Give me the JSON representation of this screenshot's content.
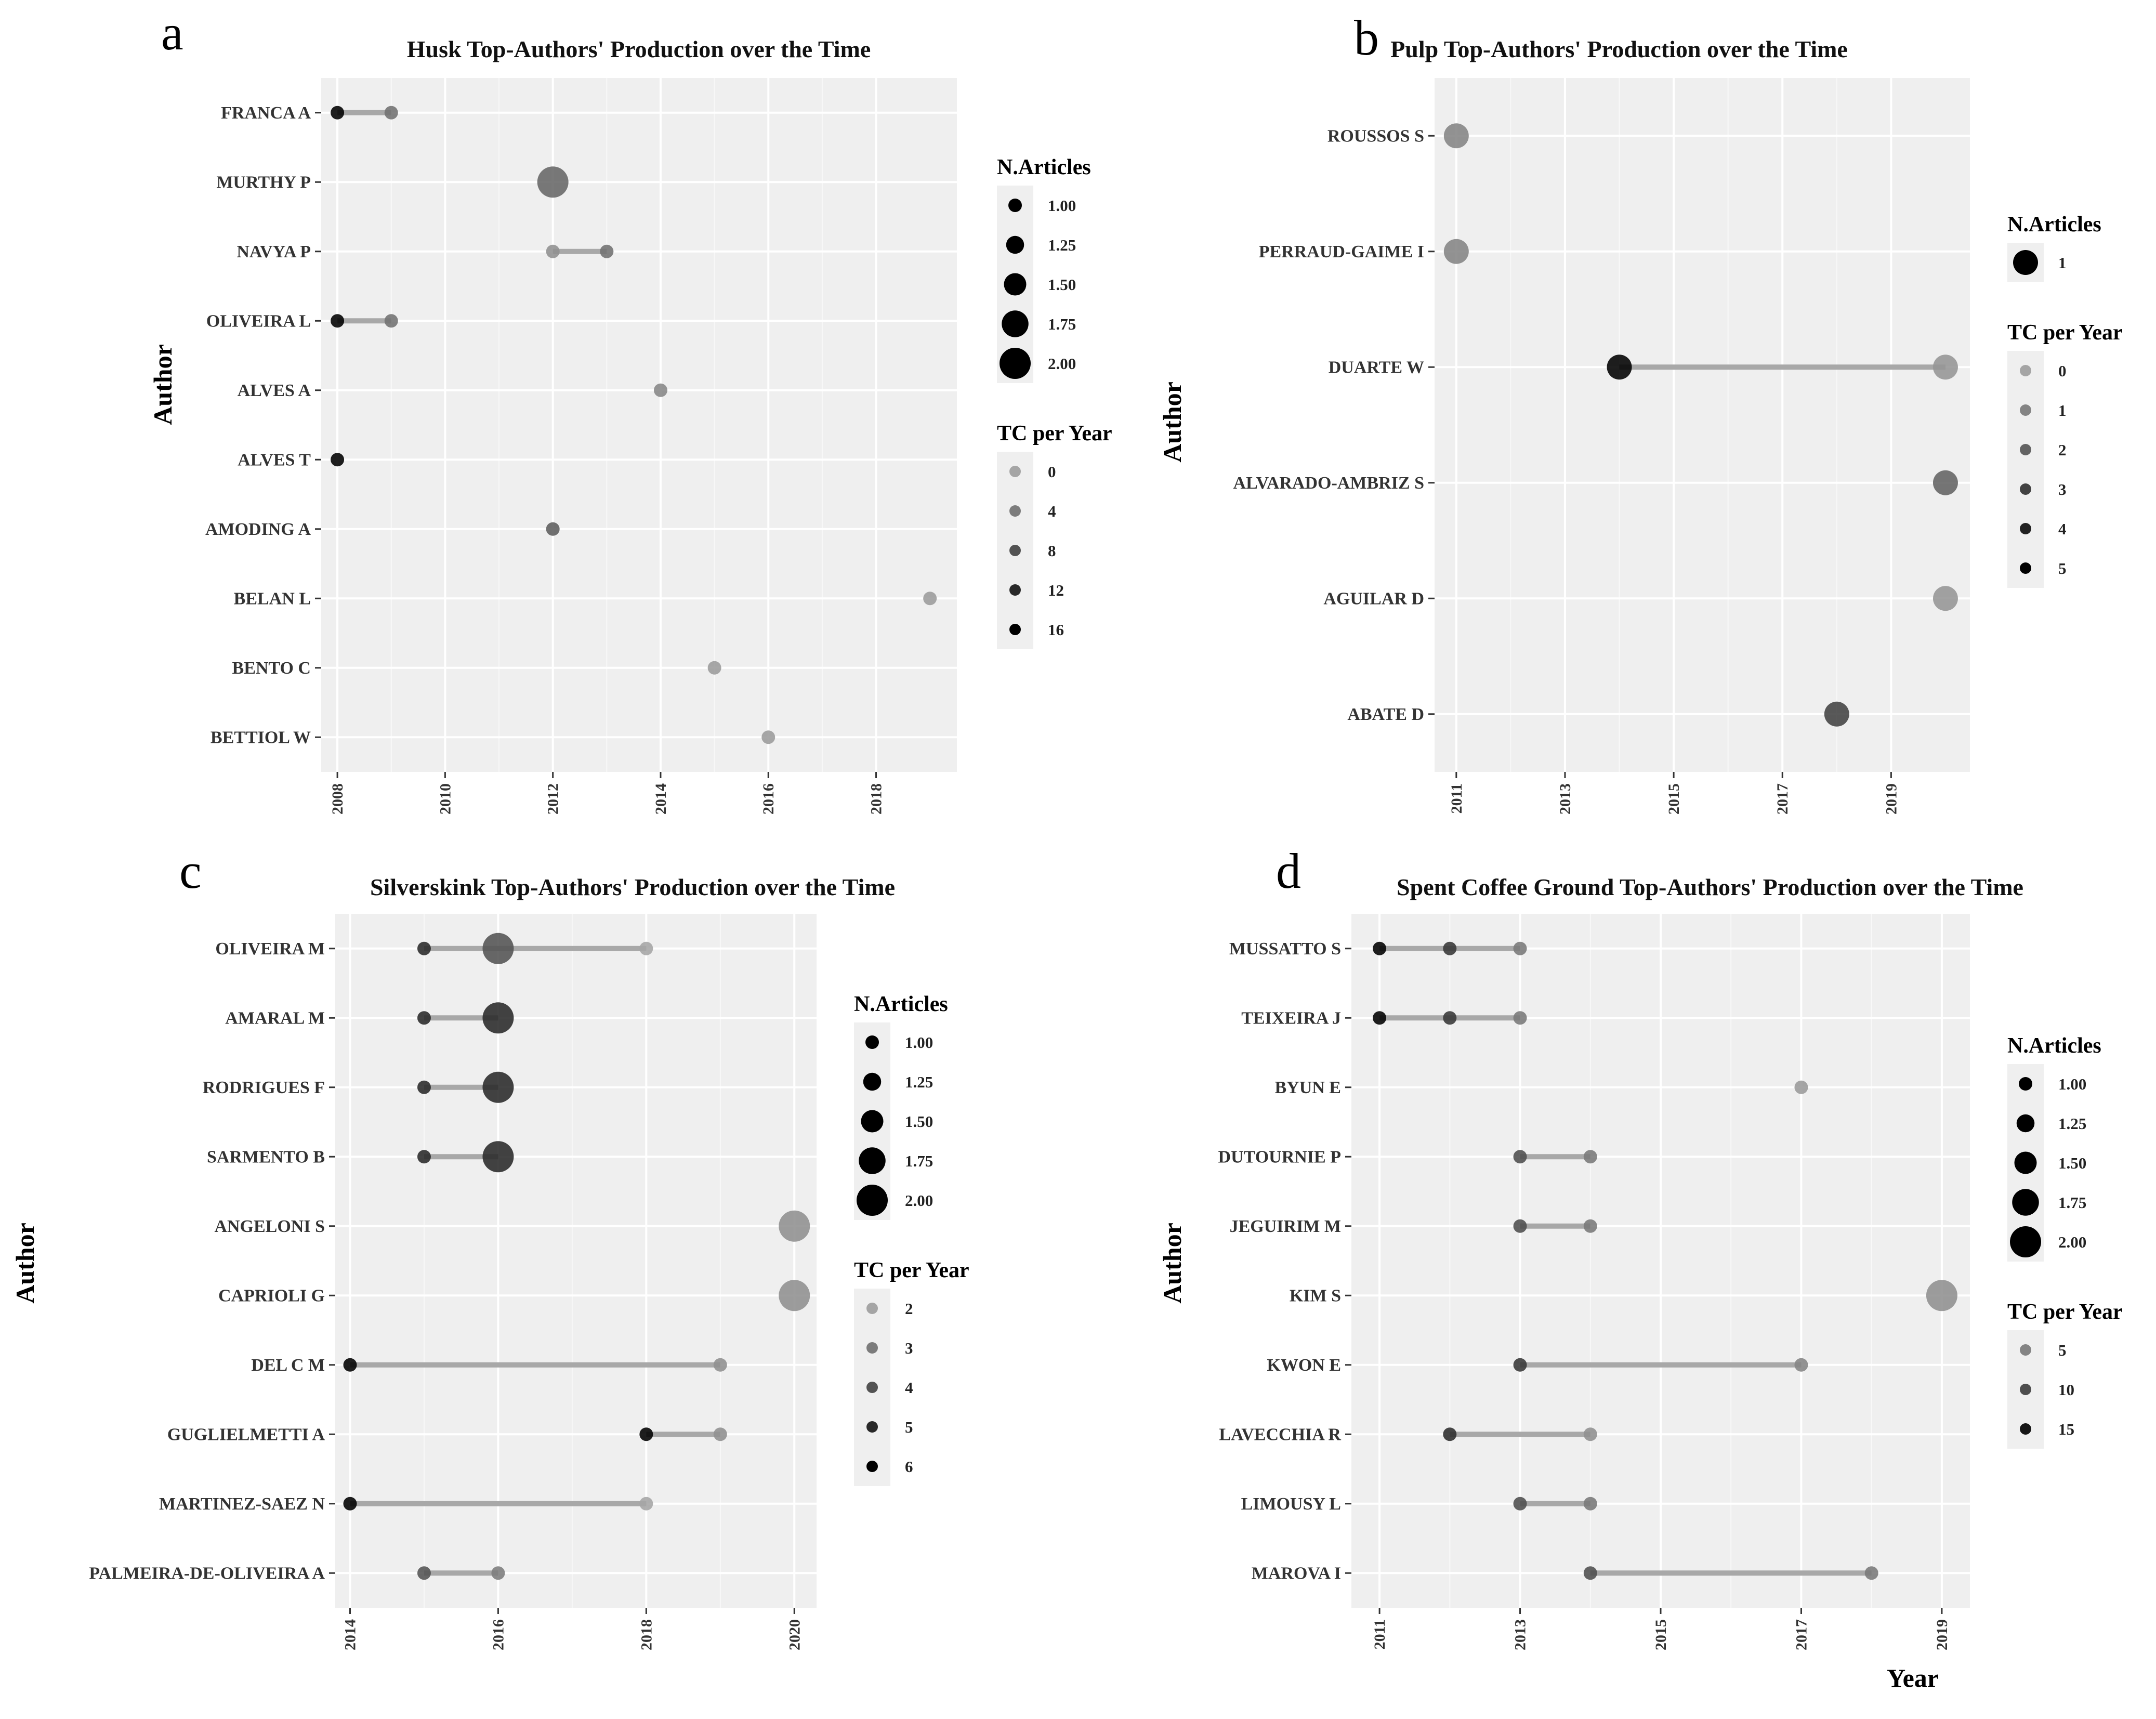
{
  "chart_data": [
    {
      "type": "scatter",
      "panel_label": "a",
      "title": "Husk Top-Authors' Production over the Time",
      "ylabel": "Author",
      "xlabel": "",
      "xlim": [
        2007.7,
        2019.5
      ],
      "xticks": [
        2008,
        2010,
        2012,
        2014,
        2016,
        2018
      ],
      "xtick_labels": [
        "2008",
        "2010",
        "2012",
        "2014",
        "2016",
        "2018"
      ],
      "authors": [
        "FRANCA A",
        "MURTHY P",
        "NAVYA P",
        "OLIVEIRA L",
        "ALVES A",
        "ALVES T",
        "AMODING A",
        "BELAN L",
        "BENTO C",
        "BETTIOL W"
      ],
      "lines": [
        {
          "author": "FRANCA A",
          "from": 2008,
          "to": 2009
        },
        {
          "author": "NAVYA P",
          "from": 2012,
          "to": 2013
        },
        {
          "author": "OLIVEIRA L",
          "from": 2008,
          "to": 2009
        }
      ],
      "points": [
        {
          "author": "FRANCA A",
          "year": 2008,
          "n_articles": 1,
          "tc_per_year": 16
        },
        {
          "author": "FRANCA A",
          "year": 2009,
          "n_articles": 1,
          "tc_per_year": 5
        },
        {
          "author": "MURTHY P",
          "year": 2012,
          "n_articles": 2,
          "tc_per_year": 6
        },
        {
          "author": "NAVYA P",
          "year": 2012,
          "n_articles": 1,
          "tc_per_year": 2
        },
        {
          "author": "NAVYA P",
          "year": 2013,
          "n_articles": 1,
          "tc_per_year": 5
        },
        {
          "author": "OLIVEIRA L",
          "year": 2008,
          "n_articles": 1,
          "tc_per_year": 16
        },
        {
          "author": "OLIVEIRA L",
          "year": 2009,
          "n_articles": 1,
          "tc_per_year": 5
        },
        {
          "author": "ALVES A",
          "year": 2014,
          "n_articles": 1,
          "tc_per_year": 3
        },
        {
          "author": "ALVES T",
          "year": 2008,
          "n_articles": 1,
          "tc_per_year": 16
        },
        {
          "author": "AMODING A",
          "year": 2012,
          "n_articles": 1,
          "tc_per_year": 7
        },
        {
          "author": "BELAN L",
          "year": 2019,
          "n_articles": 1,
          "tc_per_year": 1
        },
        {
          "author": "BENTO C",
          "year": 2015,
          "n_articles": 1,
          "tc_per_year": 1
        },
        {
          "author": "BETTIOL W",
          "year": 2016,
          "n_articles": 1,
          "tc_per_year": 1
        }
      ],
      "legends": [
        {
          "title": "N.Articles",
          "kind": "size",
          "labels": [
            "1.00",
            "1.25",
            "1.50",
            "1.75",
            "2.00"
          ],
          "values": [
            1,
            1.25,
            1.5,
            1.75,
            2
          ]
        },
        {
          "title": "TC per Year",
          "kind": "color",
          "labels": [
            "0",
            "4",
            "8",
            "12",
            "16"
          ],
          "values": [
            0,
            4,
            8,
            12,
            16
          ]
        }
      ],
      "size_range": [
        1,
        2
      ],
      "tc_range": [
        0,
        16
      ]
    },
    {
      "type": "scatter",
      "panel_label": "b",
      "title": "Pulp Top-Authors' Production over the Time",
      "ylabel": "Author",
      "xlabel": "",
      "xlim": [
        2010.6,
        2020.45
      ],
      "xticks": [
        2011,
        2013,
        2015,
        2017,
        2019
      ],
      "xtick_labels": [
        "2011",
        "2013",
        "2015",
        "2017",
        "2019"
      ],
      "authors": [
        "ROUSSOS S",
        "PERRAUD-GAIME I",
        "DUARTE W",
        "ALVARADO-AMBRIZ S",
        "AGUILAR D",
        "ABATE D"
      ],
      "lines": [
        {
          "author": "DUARTE W",
          "from": 2014,
          "to": 2020
        }
      ],
      "points": [
        {
          "author": "ROUSSOS S",
          "year": 2011,
          "n_articles": 1,
          "tc_per_year": 1
        },
        {
          "author": "PERRAUD-GAIME I",
          "year": 2011,
          "n_articles": 1,
          "tc_per_year": 1
        },
        {
          "author": "DUARTE W",
          "year": 2014,
          "n_articles": 1,
          "tc_per_year": 5
        },
        {
          "author": "DUARTE W",
          "year": 2020,
          "n_articles": 1,
          "tc_per_year": 0.5
        },
        {
          "author": "ALVARADO-AMBRIZ S",
          "year": 2020,
          "n_articles": 1,
          "tc_per_year": 2
        },
        {
          "author": "AGUILAR D",
          "year": 2020,
          "n_articles": 1,
          "tc_per_year": 0.5
        },
        {
          "author": "ABATE D",
          "year": 2018,
          "n_articles": 1,
          "tc_per_year": 3
        }
      ],
      "legends": [
        {
          "title": "N.Articles",
          "kind": "size",
          "labels": [
            "1"
          ],
          "values": [
            1
          ]
        },
        {
          "title": "TC per Year",
          "kind": "color",
          "labels": [
            "0",
            "1",
            "2",
            "3",
            "4",
            "5"
          ],
          "values": [
            0,
            1,
            2,
            3,
            4,
            5
          ]
        }
      ],
      "size_range": [
        1,
        1
      ],
      "tc_range": [
        0,
        5
      ],
      "fixed_radius": 24
    },
    {
      "type": "scatter",
      "panel_label": "c",
      "title": "Silverskink Top-Authors' Production over the Time",
      "ylabel": "Author",
      "xlabel": "",
      "xlim": [
        2013.8,
        2020.3
      ],
      "xticks": [
        2014,
        2016,
        2018,
        2020
      ],
      "xtick_labels": [
        "2014",
        "2016",
        "2018",
        "2020"
      ],
      "authors": [
        "OLIVEIRA M",
        "AMARAL M",
        "RODRIGUES F",
        "SARMENTO B",
        "ANGELONI S",
        "CAPRIOLI G",
        "DEL C M",
        "GUGLIELMETTI A",
        "MARTINEZ-SAEZ N",
        "PALMEIRA-DE-OLIVEIRA A"
      ],
      "lines": [
        {
          "author": "OLIVEIRA M",
          "from": 2015,
          "to": 2018
        },
        {
          "author": "AMARAL M",
          "from": 2015,
          "to": 2016
        },
        {
          "author": "RODRIGUES F",
          "from": 2015,
          "to": 2016
        },
        {
          "author": "SARMENTO B",
          "from": 2015,
          "to": 2016
        },
        {
          "author": "DEL C M",
          "from": 2014,
          "to": 2019
        },
        {
          "author": "GUGLIELMETTI A",
          "from": 2018,
          "to": 2019
        },
        {
          "author": "MARTINEZ-SAEZ N",
          "from": 2014,
          "to": 2018
        },
        {
          "author": "PALMEIRA-DE-OLIVEIRA A",
          "from": 2015,
          "to": 2016
        }
      ],
      "points": [
        {
          "author": "OLIVEIRA M",
          "year": 2015,
          "n_articles": 1,
          "tc_per_year": 5
        },
        {
          "author": "OLIVEIRA M",
          "year": 2016,
          "n_articles": 2,
          "tc_per_year": 4
        },
        {
          "author": "OLIVEIRA M",
          "year": 2018,
          "n_articles": 1,
          "tc_per_year": 2
        },
        {
          "author": "AMARAL M",
          "year": 2015,
          "n_articles": 1,
          "tc_per_year": 5
        },
        {
          "author": "AMARAL M",
          "year": 2016,
          "n_articles": 2,
          "tc_per_year": 5
        },
        {
          "author": "RODRIGUES F",
          "year": 2015,
          "n_articles": 1,
          "tc_per_year": 5
        },
        {
          "author": "RODRIGUES F",
          "year": 2016,
          "n_articles": 2,
          "tc_per_year": 5
        },
        {
          "author": "SARMENTO B",
          "year": 2015,
          "n_articles": 1,
          "tc_per_year": 5
        },
        {
          "author": "SARMENTO B",
          "year": 2016,
          "n_articles": 2,
          "tc_per_year": 5
        },
        {
          "author": "ANGELONI S",
          "year": 2020,
          "n_articles": 2,
          "tc_per_year": 2.5
        },
        {
          "author": "CAPRIOLI G",
          "year": 2020,
          "n_articles": 2,
          "tc_per_year": 2.5
        },
        {
          "author": "DEL C M",
          "year": 2014,
          "n_articles": 1,
          "tc_per_year": 6
        },
        {
          "author": "DEL C M",
          "year": 2019,
          "n_articles": 1,
          "tc_per_year": 2.5
        },
        {
          "author": "GUGLIELMETTI A",
          "year": 2018,
          "n_articles": 1,
          "tc_per_year": 6
        },
        {
          "author": "GUGLIELMETTI A",
          "year": 2019,
          "n_articles": 1,
          "tc_per_year": 2.5
        },
        {
          "author": "MARTINEZ-SAEZ N",
          "year": 2014,
          "n_articles": 1,
          "tc_per_year": 6
        },
        {
          "author": "MARTINEZ-SAEZ N",
          "year": 2018,
          "n_articles": 1,
          "tc_per_year": 2
        },
        {
          "author": "PALMEIRA-DE-OLIVEIRA A",
          "year": 2015,
          "n_articles": 1,
          "tc_per_year": 4
        },
        {
          "author": "PALMEIRA-DE-OLIVEIRA A",
          "year": 2016,
          "n_articles": 1,
          "tc_per_year": 3
        }
      ],
      "legends": [
        {
          "title": "N.Articles",
          "kind": "size",
          "labels": [
            "1.00",
            "1.25",
            "1.50",
            "1.75",
            "2.00"
          ],
          "values": [
            1,
            1.25,
            1.5,
            1.75,
            2
          ]
        },
        {
          "title": "TC per Year",
          "kind": "color",
          "labels": [
            "2",
            "3",
            "4",
            "5",
            "6"
          ],
          "values": [
            2,
            3,
            4,
            5,
            6
          ]
        }
      ],
      "size_range": [
        1,
        2
      ],
      "tc_range": [
        2,
        6
      ]
    },
    {
      "type": "scatter",
      "panel_label": "d",
      "title": "Spent Coffee Ground Top-Authors' Production over the Time",
      "ylabel": "Author",
      "xlabel": "Year",
      "xlim": [
        2010.6,
        2019.4
      ],
      "xticks": [
        2011,
        2013,
        2015,
        2017,
        2019
      ],
      "xtick_labels": [
        "2011",
        "2013",
        "2015",
        "2017",
        "2019"
      ],
      "authors": [
        "MUSSATTO S",
        "TEIXEIRA J",
        "BYUN E",
        "DUTOURNIE P",
        "JEGUIRIM M",
        "KIM S",
        "KWON E",
        "LAVECCHIA R",
        "LIMOUSY L",
        "MAROVA I"
      ],
      "lines": [
        {
          "author": "MUSSATTO S",
          "from": 2011,
          "to": 2013
        },
        {
          "author": "TEIXEIRA J",
          "from": 2011,
          "to": 2013
        },
        {
          "author": "DUTOURNIE P",
          "from": 2013,
          "to": 2014
        },
        {
          "author": "JEGUIRIM M",
          "from": 2013,
          "to": 2014
        },
        {
          "author": "KWON E",
          "from": 2013,
          "to": 2017
        },
        {
          "author": "LAVECCHIA R",
          "from": 2012,
          "to": 2014
        },
        {
          "author": "LIMOUSY L",
          "from": 2013,
          "to": 2014
        },
        {
          "author": "MAROVA I",
          "from": 2014,
          "to": 2018
        }
      ],
      "points": [
        {
          "author": "MUSSATTO S",
          "year": 2011,
          "n_articles": 1,
          "tc_per_year": 17
        },
        {
          "author": "MUSSATTO S",
          "year": 2012,
          "n_articles": 1,
          "tc_per_year": 12
        },
        {
          "author": "MUSSATTO S",
          "year": 2013,
          "n_articles": 1,
          "tc_per_year": 6
        },
        {
          "author": "TEIXEIRA J",
          "year": 2011,
          "n_articles": 1,
          "tc_per_year": 17
        },
        {
          "author": "TEIXEIRA J",
          "year": 2012,
          "n_articles": 1,
          "tc_per_year": 12
        },
        {
          "author": "TEIXEIRA J",
          "year": 2013,
          "n_articles": 1,
          "tc_per_year": 6
        },
        {
          "author": "BYUN E",
          "year": 2017,
          "n_articles": 1,
          "tc_per_year": 3
        },
        {
          "author": "DUTOURNIE P",
          "year": 2013,
          "n_articles": 1,
          "tc_per_year": 10
        },
        {
          "author": "DUTOURNIE P",
          "year": 2014,
          "n_articles": 1,
          "tc_per_year": 6
        },
        {
          "author": "JEGUIRIM M",
          "year": 2013,
          "n_articles": 1,
          "tc_per_year": 10
        },
        {
          "author": "JEGUIRIM M",
          "year": 2014,
          "n_articles": 1,
          "tc_per_year": 6
        },
        {
          "author": "KIM S",
          "year": 2019,
          "n_articles": 2,
          "tc_per_year": 4
        },
        {
          "author": "KWON E",
          "year": 2013,
          "n_articles": 1,
          "tc_per_year": 12
        },
        {
          "author": "KWON E",
          "year": 2017,
          "n_articles": 1,
          "tc_per_year": 5
        },
        {
          "author": "LAVECCHIA R",
          "year": 2012,
          "n_articles": 1,
          "tc_per_year": 13
        },
        {
          "author": "LAVECCHIA R",
          "year": 2014,
          "n_articles": 1,
          "tc_per_year": 4
        },
        {
          "author": "LIMOUSY L",
          "year": 2013,
          "n_articles": 1,
          "tc_per_year": 10
        },
        {
          "author": "LIMOUSY L",
          "year": 2014,
          "n_articles": 1,
          "tc_per_year": 6
        },
        {
          "author": "MAROVA I",
          "year": 2014,
          "n_articles": 1,
          "tc_per_year": 10
        },
        {
          "author": "MAROVA I",
          "year": 2018,
          "n_articles": 1,
          "tc_per_year": 6
        }
      ],
      "legends": [
        {
          "title": "N.Articles",
          "kind": "size",
          "labels": [
            "1.00",
            "1.25",
            "1.50",
            "1.75",
            "2.00"
          ],
          "values": [
            1,
            1.25,
            1.5,
            1.75,
            2
          ]
        },
        {
          "title": "TC per Year",
          "kind": "color",
          "labels": [
            "5",
            "10",
            "15"
          ],
          "values": [
            5,
            10,
            15
          ]
        }
      ],
      "size_range": [
        1,
        2
      ],
      "tc_range": [
        2,
        17
      ]
    }
  ]
}
